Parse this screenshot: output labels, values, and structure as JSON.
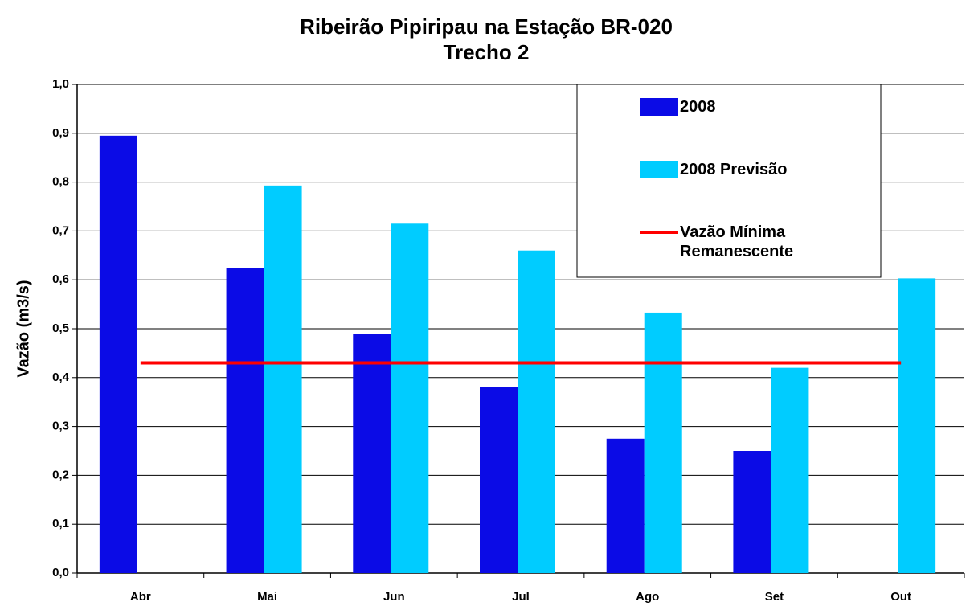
{
  "chart_data": {
    "type": "bar",
    "title": "Ribeirão Pipiripau na Estação BR-020",
    "subtitle": "Trecho 2",
    "y_label": "Vazão (m3/s)",
    "categories": [
      "Abr",
      "Mai",
      "Jun",
      "Jul",
      "Ago",
      "Set",
      "Out"
    ],
    "series": [
      {
        "name": "2008",
        "type": "bar",
        "color": "#0b0be6",
        "values": [
          0.895,
          0.625,
          0.49,
          0.38,
          0.275,
          0.25,
          null
        ]
      },
      {
        "name": "2008 Previsão",
        "type": "bar",
        "color": "#00ccff",
        "values": [
          null,
          0.793,
          0.715,
          0.66,
          0.533,
          0.42,
          0.603
        ]
      },
      {
        "name": "Vazão Mínima Remanescente",
        "type": "line",
        "color": "#ff0000",
        "values": [
          0.43,
          0.43,
          0.43,
          0.43,
          0.43,
          0.43,
          0.43
        ]
      }
    ],
    "ylim": [
      0,
      1
    ],
    "yticks": [
      {
        "value": 0,
        "label": "0,0"
      },
      {
        "value": 0.1,
        "label": "0,1"
      },
      {
        "value": 0.2,
        "label": "0,2"
      },
      {
        "value": 0.3,
        "label": "0,3"
      },
      {
        "value": 0.4,
        "label": "0,4"
      },
      {
        "value": 0.5,
        "label": "0,5"
      },
      {
        "value": 0.6,
        "label": "0,6"
      },
      {
        "value": 0.7,
        "label": "0,7"
      },
      {
        "value": 0.8,
        "label": "0,8"
      },
      {
        "value": 0.9,
        "label": "0,9"
      },
      {
        "value": 1,
        "label": "1,0"
      }
    ],
    "grid": true,
    "legend": "top-right"
  }
}
